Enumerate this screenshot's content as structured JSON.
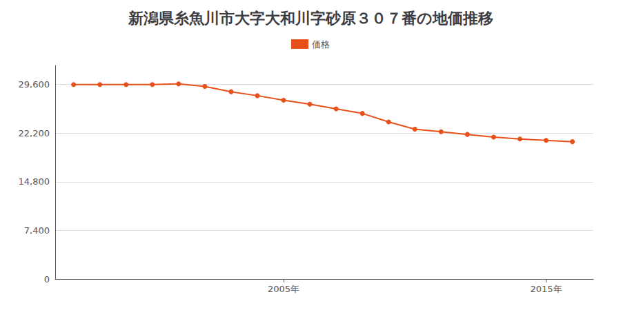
{
  "chart_data": {
    "type": "line",
    "title": "新潟県糸魚川市大字大和川字砂原３０７番の地価推移",
    "x": [
      1997,
      1998,
      1999,
      2000,
      2001,
      2002,
      2003,
      2004,
      2005,
      2006,
      2007,
      2008,
      2009,
      2010,
      2011,
      2012,
      2013,
      2014,
      2015,
      2016
    ],
    "series": [
      {
        "name": "価格",
        "color": "#E8501A",
        "marker": "circle",
        "values": [
          29600,
          29600,
          29600,
          29600,
          29700,
          29300,
          28500,
          27900,
          27200,
          26600,
          25900,
          25200,
          23900,
          22800,
          22400,
          22000,
          21600,
          21300,
          21100,
          20900
        ]
      }
    ],
    "xlim": [
      1996.3,
      2016.8
    ],
    "xticks": [
      {
        "value": 2005,
        "label": "2005年"
      },
      {
        "value": 2015,
        "label": "2015年"
      }
    ],
    "ylim": [
      0,
      32500
    ],
    "yticks": [
      0,
      {
        "value": 7400,
        "label": "7,400"
      },
      {
        "value": 14800,
        "label": "14,800"
      },
      {
        "value": 22200,
        "label": "22,200"
      },
      {
        "value": 29600,
        "label": "29,600"
      }
    ],
    "grid": true,
    "legend": "top"
  }
}
